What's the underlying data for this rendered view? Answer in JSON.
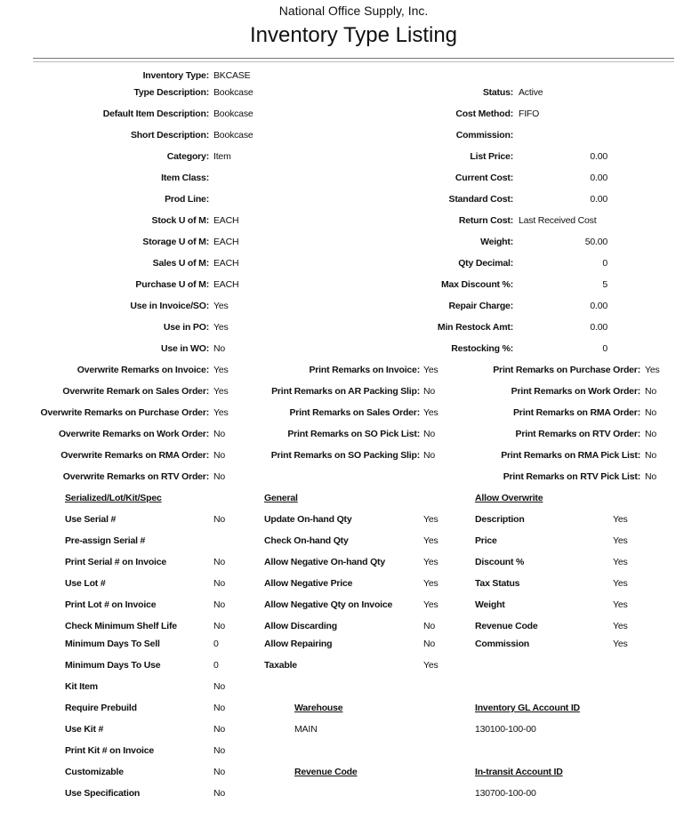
{
  "header": {
    "company": "National Office Supply, Inc.",
    "title": "Inventory Type Listing"
  },
  "left_fields": [
    [
      "Inventory Type:",
      "BKCASE"
    ],
    [
      "Type Description:",
      "Bookcase"
    ],
    [
      "Default Item Description:",
      "Bookcase"
    ],
    [
      "Short Description:",
      "Bookcase"
    ],
    [
      "Category:",
      "Item"
    ],
    [
      "Item Class:",
      ""
    ],
    [
      "Prod Line:",
      ""
    ],
    [
      "Stock U of M:",
      "EACH"
    ],
    [
      "Storage U of M:",
      "EACH"
    ],
    [
      "Sales U of M:",
      "EACH"
    ],
    [
      "Purchase U of M:",
      "EACH"
    ],
    [
      "Use in Invoice/SO:",
      "Yes"
    ],
    [
      "Use in PO:",
      "Yes"
    ],
    [
      "Use in WO:",
      "No"
    ]
  ],
  "right_fields": [
    [
      "",
      ""
    ],
    [
      "Status:",
      "Active"
    ],
    [
      "Cost Method:",
      "FIFO"
    ],
    [
      "Commission:",
      ""
    ],
    [
      "List Price:",
      "0.00"
    ],
    [
      "Current Cost:",
      "0.00"
    ],
    [
      "Standard Cost:",
      "0.00"
    ],
    [
      "Return Cost:",
      "Last Received Cost"
    ],
    [
      "Weight:",
      "50.00"
    ],
    [
      "Qty Decimal:",
      "0"
    ],
    [
      "Max Discount %:",
      "5"
    ],
    [
      "Repair Charge:",
      "0.00"
    ],
    [
      "Min Restock Amt:",
      "0.00"
    ],
    [
      "Restocking %:",
      "0"
    ]
  ],
  "remarks": [
    [
      [
        "Overwrite Remarks on Invoice:",
        "Yes"
      ],
      [
        "Print Remarks on Invoice:",
        "Yes"
      ],
      [
        "Print Remarks on Purchase Order:",
        "Yes"
      ]
    ],
    [
      [
        "Overwrite Remark on Sales Order:",
        "Yes"
      ],
      [
        "Print Remarks on AR Packing Slip:",
        "No"
      ],
      [
        "Print Remarks on Work Order:",
        "No"
      ]
    ],
    [
      [
        "Overwrite Remarks on Purchase Order:",
        "Yes"
      ],
      [
        "Print Remarks on Sales Order:",
        "Yes"
      ],
      [
        "Print Remarks on RMA Order:",
        "No"
      ]
    ],
    [
      [
        "Overwrite Remarks on Work Order:",
        "No"
      ],
      [
        "Print Remarks on SO Pick List:",
        "No"
      ],
      [
        "Print Remarks on RTV Order:",
        "No"
      ]
    ],
    [
      [
        "Overwrite Remarks on RMA Order:",
        "No"
      ],
      [
        "Print Remarks on SO Packing Slip:",
        "No"
      ],
      [
        "Print Remarks on RMA Pick List:",
        "No"
      ]
    ],
    [
      [
        "Overwrite Remarks on RTV Order:",
        "No"
      ],
      [
        "",
        ""
      ],
      [
        "Print Remarks on RTV Pick List:",
        "No"
      ]
    ]
  ],
  "sections": [
    {
      "heading": "Serialized/Lot/Kit/Spec",
      "items": [
        [
          "Use Serial #",
          "No"
        ],
        [
          "Pre-assign Serial #",
          ""
        ],
        [
          "Print Serial # on Invoice",
          "No"
        ],
        [
          "Use Lot #",
          "No"
        ],
        [
          "Print Lot # on Invoice",
          "No"
        ],
        [
          "Check Minimum Shelf Life",
          "No"
        ],
        [
          "Minimum Days To Sell",
          "0"
        ],
        [
          "Minimum Days To Use",
          "0"
        ],
        [
          "Kit Item",
          "No"
        ],
        [
          "Require Prebuild",
          "No"
        ],
        [
          "Use Kit #",
          "No"
        ],
        [
          "Print Kit # on Invoice",
          "No"
        ],
        [
          "Customizable",
          "No"
        ],
        [
          "Use Specification",
          "No"
        ]
      ]
    },
    {
      "heading": "General",
      "items": [
        [
          "Update On-hand Qty",
          "Yes"
        ],
        [
          "Check On-hand Qty",
          "Yes"
        ],
        [
          "Allow Negative On-hand Qty",
          "Yes"
        ],
        [
          "Allow Negative Price",
          "Yes"
        ],
        [
          "Allow Negative Qty on Invoice",
          "Yes"
        ],
        [
          "Allow Discarding",
          "No"
        ],
        [
          "Allow Repairing",
          "No"
        ],
        [
          "Taxable",
          "Yes"
        ]
      ]
    },
    {
      "heading": "Allow Overwrite",
      "items": [
        [
          "Description",
          "Yes"
        ],
        [
          "Price",
          "Yes"
        ],
        [
          "Discount %",
          "Yes"
        ],
        [
          "Tax Status",
          "Yes"
        ],
        [
          "Weight",
          "Yes"
        ],
        [
          "Revenue Code",
          "Yes"
        ],
        [
          "Commission",
          "Yes"
        ]
      ]
    }
  ],
  "accounts": {
    "warehouse_heading": "Warehouse",
    "warehouse": "MAIN",
    "revenue_heading": "Revenue Code",
    "revenue": "",
    "gl_heading": "Inventory GL Account ID",
    "gl": "130100-100-00",
    "transit_heading": "In-transit Account ID",
    "transit": "130700-100-00"
  }
}
